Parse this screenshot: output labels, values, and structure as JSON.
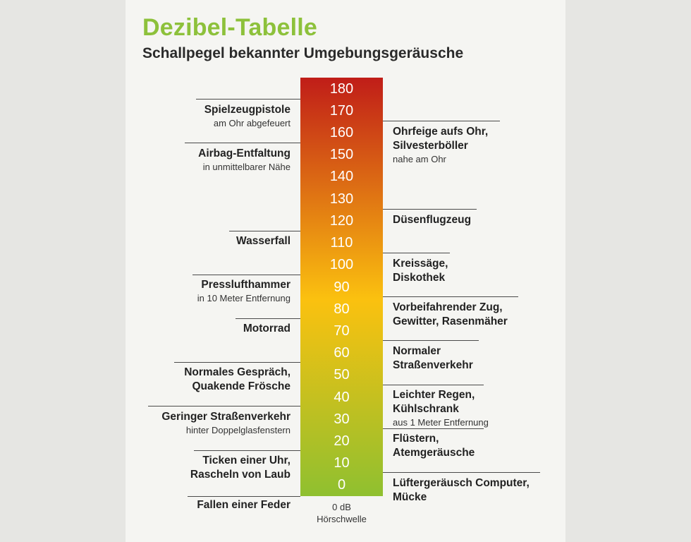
{
  "title": "Dezibel-Tabelle",
  "subtitle": "Schallpegel bekannter Umgebungsgeräusche",
  "scale": {
    "levels": [
      "180",
      "170",
      "160",
      "150",
      "140",
      "130",
      "120",
      "110",
      "100",
      "90",
      "80",
      "70",
      "60",
      "50",
      "40",
      "30",
      "20",
      "10",
      "0"
    ],
    "color_top": "#c01d18",
    "color_middle": "#fbc10f",
    "color_bottom": "#8fc030"
  },
  "left_labels": [
    {
      "label": "Spielzeugpistole",
      "note": "am Ohr abgefeuert"
    },
    {
      "label": "Airbag-Entfaltung",
      "note": "in unmittelbarer Nähe"
    },
    {
      "label": "Wasserfall",
      "note": ""
    },
    {
      "label": "Presslufthammer",
      "note": "in 10 Meter Entfernung"
    },
    {
      "label": "Motorrad",
      "note": ""
    },
    {
      "label": "Normales Gespräch,\nQuakende Frösche",
      "note": ""
    },
    {
      "label": "Geringer Straßenverkehr",
      "note": "hinter Doppelglasfenstern"
    },
    {
      "label": "Ticken einer Uhr,\nRascheln von Laub",
      "note": ""
    },
    {
      "label": "Fallen einer Feder",
      "note": ""
    }
  ],
  "right_labels": [
    {
      "label": "Ohrfeige aufs Ohr,\nSilvesterböller",
      "note": "nahe am Ohr"
    },
    {
      "label": "Düsenflugzeug",
      "note": ""
    },
    {
      "label": "Kreissäge,\nDiskothek",
      "note": ""
    },
    {
      "label": "Vorbeifahrender Zug,\nGewitter, Rasenmäher",
      "note": ""
    },
    {
      "label": "Normaler\nStraßenverkehr",
      "note": ""
    },
    {
      "label": "Leichter Regen,\nKühlschrank",
      "note": "aus 1 Meter Entfernung"
    },
    {
      "label": "Flüstern,\nAtemgeräusche",
      "note": ""
    },
    {
      "label": "Lüftergeräusch Computer,\nMücke",
      "note": ""
    }
  ],
  "threshold": {
    "value": "0 dB",
    "label": "Hörschwelle"
  }
}
